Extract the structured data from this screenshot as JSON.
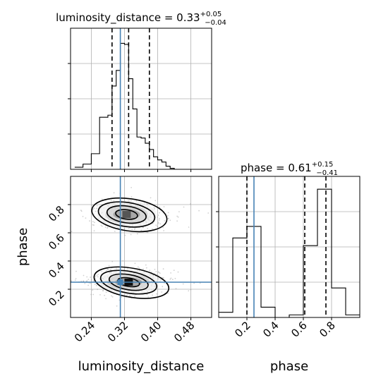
{
  "chart_data": [
    {
      "type": "histogram",
      "panel": "top-left",
      "parameter": "luminosity_distance",
      "title": {
        "prefix": "luminosity_distance = 0.33",
        "sup": "+0.05",
        "sub": "−0.04"
      },
      "xlim": [
        0.19,
        0.53
      ],
      "bins": [
        0.2,
        0.22,
        0.24,
        0.26,
        0.28,
        0.29,
        0.3,
        0.31,
        0.32,
        0.33,
        0.34,
        0.35,
        0.36,
        0.37,
        0.38,
        0.39,
        0.4,
        0.41,
        0.42,
        0.43,
        0.44,
        0.45,
        0.46,
        0.47,
        0.48,
        0.49,
        0.5
      ],
      "counts": [
        2,
        5,
        15,
        50,
        52,
        80,
        95,
        121,
        120,
        87,
        58,
        31,
        30,
        25,
        19,
        12,
        9,
        7,
        3,
        1,
        0,
        0,
        0,
        0,
        0,
        0
      ],
      "quantiles": [
        0.29,
        0.33,
        0.38
      ],
      "truth": 0.31
    },
    {
      "type": "scatter-contour",
      "panel": "bottom-left",
      "xlabel": "luminosity_distance",
      "ylabel": "phase",
      "xlim": [
        0.19,
        0.53
      ],
      "ylim": [
        0.0,
        1.0
      ],
      "xticks": [
        "0.24",
        "0.32",
        "0.40",
        "0.48"
      ],
      "xtick_values": [
        0.24,
        0.32,
        0.4,
        0.48
      ],
      "yticks": [
        "0.2",
        "0.4",
        "0.6",
        "0.8"
      ],
      "ytick_values": [
        0.2,
        0.4,
        0.6,
        0.8
      ],
      "modes": [
        {
          "x": 0.325,
          "y": 0.73,
          "sx": 0.038,
          "sy": 0.05
        },
        {
          "x": 0.33,
          "y": 0.25,
          "sx": 0.038,
          "sy": 0.045
        }
      ],
      "truth": {
        "x": 0.31,
        "y": 0.25
      }
    },
    {
      "type": "histogram",
      "panel": "bottom-right",
      "parameter": "phase",
      "title": {
        "prefix": "phase = 0.61",
        "sup": "+0.15",
        "sub": "−0.41"
      },
      "xlabel": "phase",
      "xlim": [
        0.0,
        1.0
      ],
      "xticks": [
        "0.2",
        "0.4",
        "0.6",
        "0.8"
      ],
      "xtick_values": [
        0.2,
        0.4,
        0.6,
        0.8
      ],
      "bins": [
        0.0,
        0.1,
        0.2,
        0.3,
        0.4,
        0.5,
        0.6,
        0.7,
        0.8,
        0.9,
        1.0
      ],
      "counts": [
        4,
        62,
        71,
        8,
        0,
        2,
        56,
        100,
        23,
        2
      ],
      "quantiles": [
        0.2,
        0.61,
        0.76
      ],
      "truth": 0.25
    }
  ]
}
